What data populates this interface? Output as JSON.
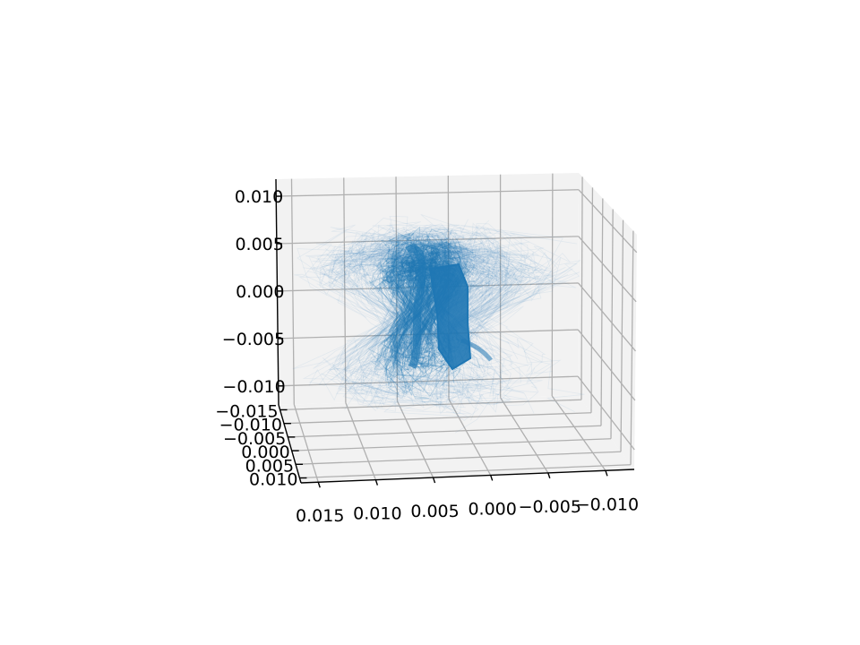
{
  "chart_data": {
    "type": "line",
    "projection": "3d",
    "title": "",
    "xlabel": "",
    "ylabel": "",
    "zlabel": "",
    "grid": true,
    "pane_color": "#f2f2f2",
    "grid_color": "#b0b0b0",
    "series_color": "#1f77b4",
    "x_axis": {
      "ticks": [
        0.015,
        0.01,
        0.005,
        0.0,
        -0.005,
        -0.01
      ],
      "tick_labels": [
        "0.015",
        "0.010",
        "0.005",
        "0.000",
        "−0.005",
        "−0.010"
      ]
    },
    "y_axis": {
      "ticks": [
        -0.015,
        -0.01,
        -0.005,
        0.0,
        0.005,
        0.01
      ],
      "tick_labels": [
        "−0.015",
        "−0.010",
        "−0.005",
        "0.000",
        "0.005",
        "0.010"
      ]
    },
    "z_axis": {
      "ticks": [
        0.01,
        0.005,
        0.0,
        -0.005,
        -0.01
      ],
      "tick_labels": [
        "0.010",
        "0.005",
        "0.000",
        "−0.005",
        "−0.010"
      ]
    },
    "series": [
      {
        "description_free": true,
        "core_trajectory": [
          [
            0.003,
            0.0,
            0.002
          ],
          [
            0.0025,
            0.0005,
            0.0005
          ],
          [
            0.002,
            0.0,
            -0.001
          ],
          [
            0.0015,
            -0.0005,
            -0.003
          ],
          [
            0.001,
            0.0,
            -0.005
          ],
          [
            0.0015,
            0.0005,
            -0.006
          ],
          [
            0.002,
            0.0,
            -0.0045
          ],
          [
            0.0025,
            -0.0005,
            -0.0025
          ],
          [
            0.003,
            0.0,
            -0.0005
          ],
          [
            0.0035,
            0.0005,
            0.0015
          ]
        ]
      }
    ]
  }
}
